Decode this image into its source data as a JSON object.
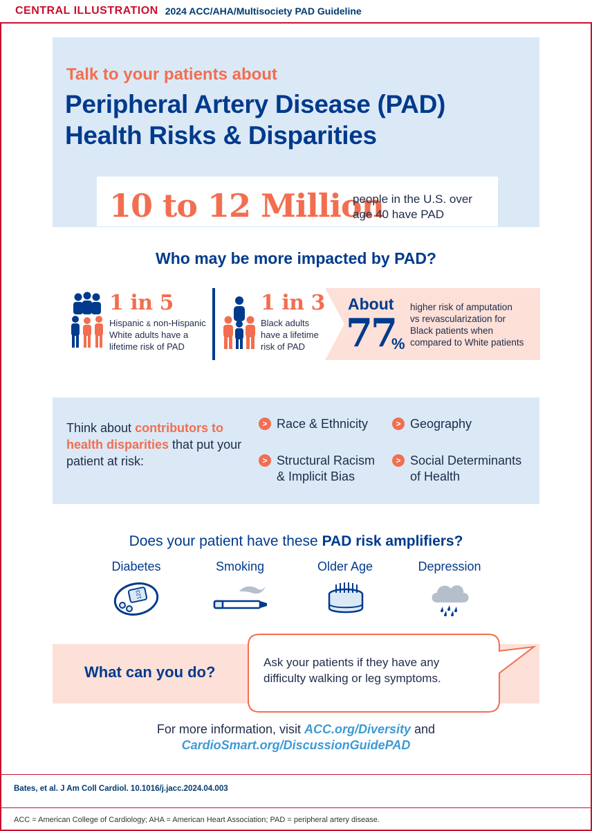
{
  "header": {
    "tag": "CENTRAL ILLUSTRATION",
    "guideline": "2024 ACC/AHA/Multisociety PAD Guideline"
  },
  "intro": {
    "pre_title": "Talk to your patients about",
    "title_line1": "Peripheral Artery Disease (PAD)",
    "title_line2": "Health Risks & Disparities"
  },
  "prevalence": {
    "big": "10 to 12 Million",
    "desc_line1": "people in the U.S. over",
    "desc_line2": "age 40 have PAD"
  },
  "impact": {
    "title": "Who may be more impacted by PAD?",
    "stats": [
      {
        "ratio": "1 in 5",
        "line1_a": "Hispanic",
        "line1_amp": "&",
        "line1_b": "non-Hispanic",
        "line2": "White adults have a",
        "line3": "lifetime risk of PAD"
      },
      {
        "ratio": "1 in 3",
        "line1": "Black adults",
        "line2": "have a lifetime",
        "line3": "risk of PAD"
      }
    ],
    "about": {
      "word": "About",
      "number": "77",
      "percent": "%",
      "line1": "higher risk of amputation",
      "line2": "vs revascularization for",
      "line3": "Black patients when",
      "line4": "compared to White patients"
    }
  },
  "contributors": {
    "lead_a": "Think about ",
    "highlight": "contributors to health disparities",
    "lead_b": " that put your patient at risk:",
    "bullet_glyph": ">",
    "items": [
      {
        "line1": "Race & Ethnicity"
      },
      {
        "line1": "Geography"
      },
      {
        "line1": "Structural Racism",
        "line2": "& Implicit Bias"
      },
      {
        "line1": "Social Determinants",
        "line2": "of Health"
      }
    ]
  },
  "amplifiers": {
    "title_a": "Does your patient have these ",
    "title_b": "PAD risk amplifiers?",
    "items": [
      {
        "label": "Diabetes",
        "icon": "glucose-meter-icon",
        "reading": "123"
      },
      {
        "label": "Smoking",
        "icon": "cigarette-icon"
      },
      {
        "label": "Older Age",
        "icon": "birthday-cake-icon"
      },
      {
        "label": "Depression",
        "icon": "rain-cloud-icon"
      }
    ]
  },
  "action": {
    "title": "What can you do?",
    "bubble_line1": "Ask your patients if they have any",
    "bubble_line2": "difficulty walking or leg symptoms."
  },
  "more_info": {
    "lead": "For more information, visit ",
    "link1": "ACC.org/Diversity",
    "and": " and",
    "link2": "CardioSmart.org/DiscussionGuidePAD"
  },
  "citation": "Bates, et al. J Am Coll Cardiol. 10.1016/j.jacc.2024.04.003",
  "footnote": "ACC = American College of Cardiology; AHA = American Heart Association; PAD = peripheral artery disease.",
  "colors": {
    "brand_red": "#c8102e",
    "navy": "#003a8c",
    "coral": "#f26e50",
    "light_blue": "#dbe9f7",
    "light_pink": "#fde0d8",
    "link_blue": "#3d9ad6"
  }
}
